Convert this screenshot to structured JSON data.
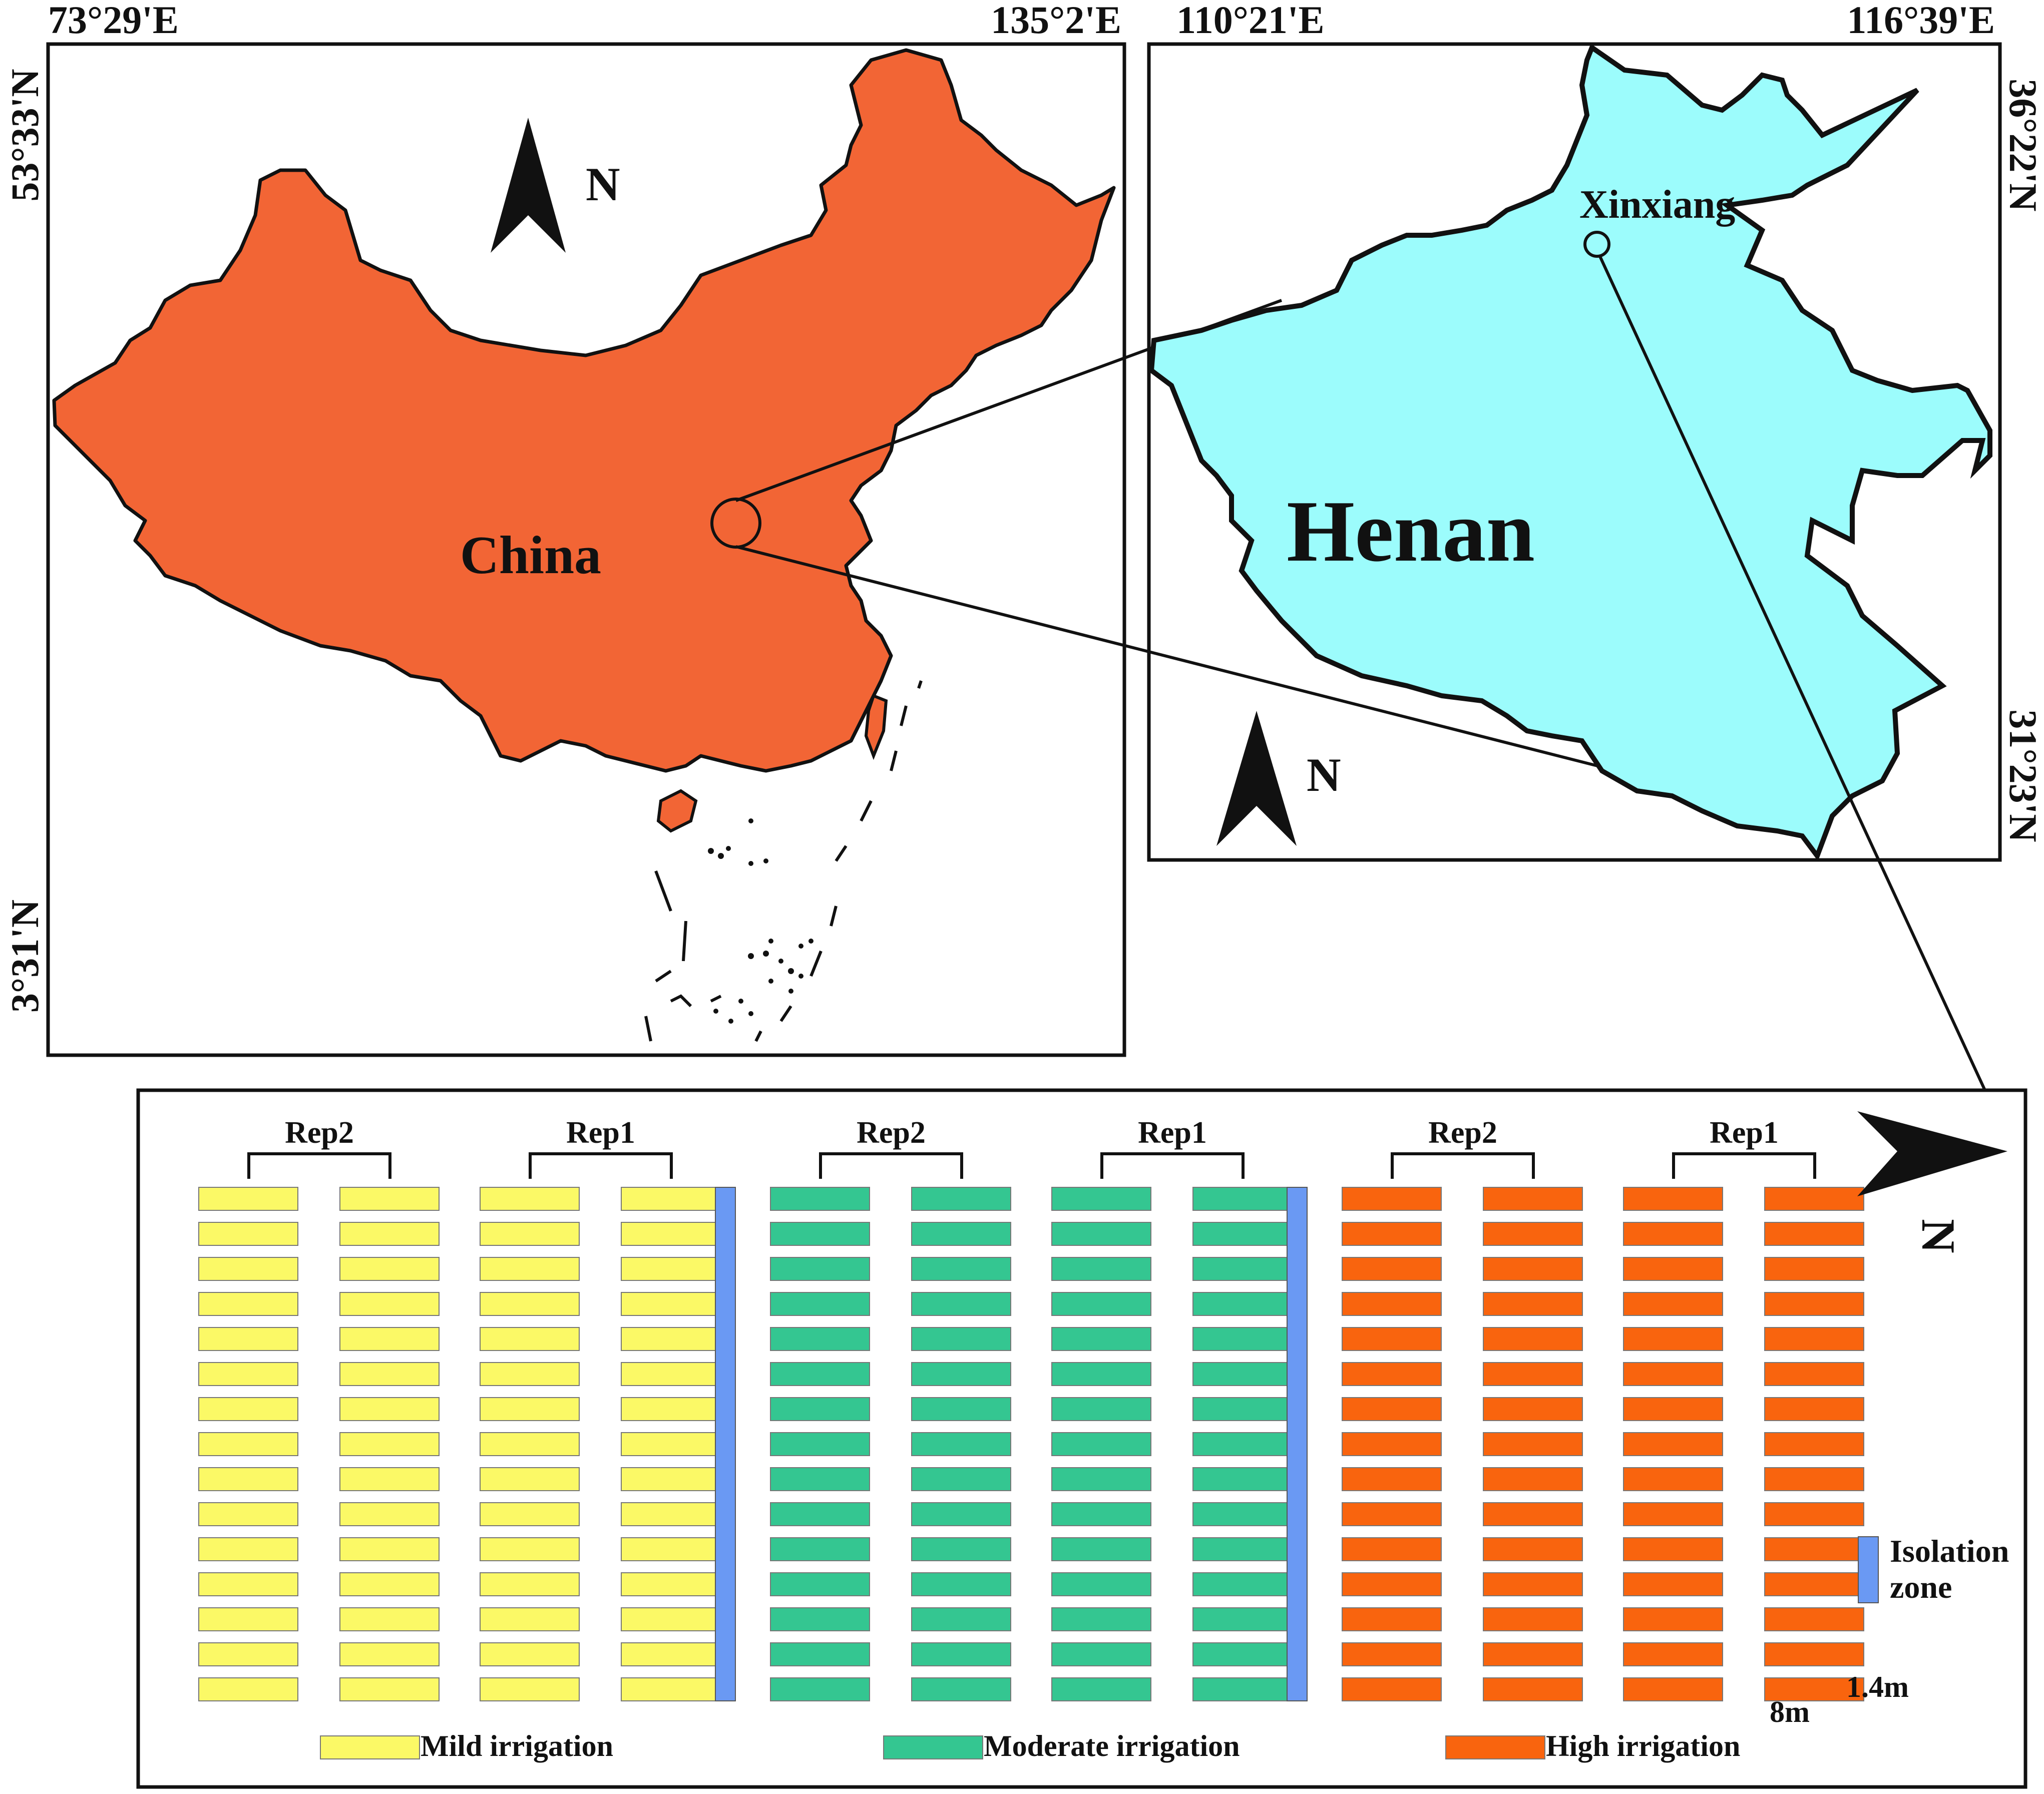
{
  "china_panel": {
    "coords": {
      "top_left": "73°29'E",
      "top_right": "135°2'E",
      "left_top": "53°33'N",
      "left_bottom": "3°31'N"
    },
    "label": "China",
    "north": "N",
    "fill_color": "#f26535"
  },
  "henan_panel": {
    "coords": {
      "top_left": "110°21'E",
      "top_right": "116°39'E",
      "right_top": "36°22'N",
      "right_bottom": "31°23'N"
    },
    "label": "Henan",
    "city": "Xinxiang",
    "north": "N",
    "fill_color": "#9cfcfc"
  },
  "field_layout": {
    "north": "N",
    "groups": [
      {
        "label": "Rep2",
        "treatment": "mild"
      },
      {
        "label": "Rep1",
        "treatment": "mild"
      },
      {
        "label": "Rep2",
        "treatment": "moderate"
      },
      {
        "label": "Rep1",
        "treatment": "moderate"
      },
      {
        "label": "Rep2",
        "treatment": "high"
      },
      {
        "label": "Rep1",
        "treatment": "high"
      }
    ],
    "rows_per_column": 15,
    "plot_width_label": "1.4m",
    "plot_length_label": "8m",
    "isolation_label_line1": "Isolation",
    "isolation_label_line2": "zone",
    "colors": {
      "mild": "#fbf966",
      "moderate": "#34c691",
      "high": "#f9640e",
      "isolation": "#6a99f3"
    },
    "legend": [
      {
        "key": "mild",
        "label": "Mild irrigation"
      },
      {
        "key": "moderate",
        "label": "Moderate irrigation"
      },
      {
        "key": "high",
        "label": "High irrigation"
      }
    ]
  }
}
